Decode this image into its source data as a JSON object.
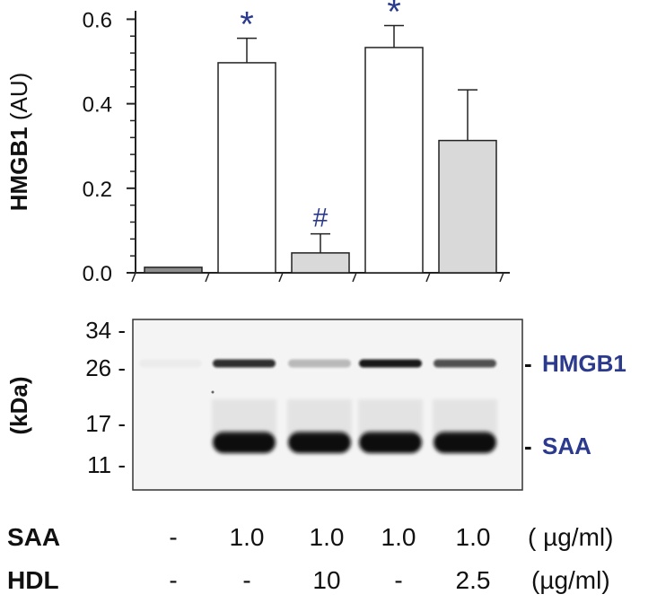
{
  "chart_data": [
    {
      "type": "bar",
      "ylabel_bold": "HMGB1",
      "ylabel_rest": " (AU)",
      "ylim": [
        0,
        0.62
      ],
      "yticks": [
        "0.0",
        "0.2",
        "0.4",
        "0.6"
      ],
      "ytick_values": [
        0.0,
        0.2,
        0.4,
        0.6
      ],
      "minor_ticks_per_major": 4,
      "grid": false,
      "values": [
        0.013,
        0.497,
        0.047,
        0.533,
        0.313
      ],
      "errors": [
        0.0,
        0.058,
        0.045,
        0.052,
        0.12
      ],
      "bar_colors": [
        "#8c8c8c",
        "#ffffff",
        "#d9d9d9",
        "#ffffff",
        "#d9d9d9"
      ],
      "annotations": [
        "",
        "*",
        "#",
        "*",
        ""
      ]
    },
    {
      "type": "western-blot",
      "axis_label": "(kDa)",
      "markers": [
        "34 -",
        "26 -",
        "17 -",
        "11 -"
      ],
      "marker_kda": [
        34,
        26,
        17,
        11
      ],
      "bands": [
        {
          "name": "HMGB1",
          "tick": "-",
          "intensity": [
            0.03,
            0.85,
            0.25,
            0.95,
            0.7
          ]
        },
        {
          "name": "SAA",
          "tick": "-",
          "intensity": [
            0.0,
            1.0,
            1.0,
            1.0,
            1.0
          ]
        }
      ]
    }
  ],
  "conditions": {
    "saa": {
      "label": "SAA",
      "values": [
        "-",
        "1.0",
        "1.0",
        "1.0",
        "1.0"
      ],
      "unit": "( µg/ml)"
    },
    "hdl": {
      "label": "HDL",
      "values": [
        "-",
        "-",
        "10",
        "-",
        "2.5"
      ],
      "unit": "(µg/ml)"
    }
  },
  "colors": {
    "accent": "#2b3a8c",
    "bar_stroke": "#222222",
    "blot_band": "#0d0d0d"
  }
}
